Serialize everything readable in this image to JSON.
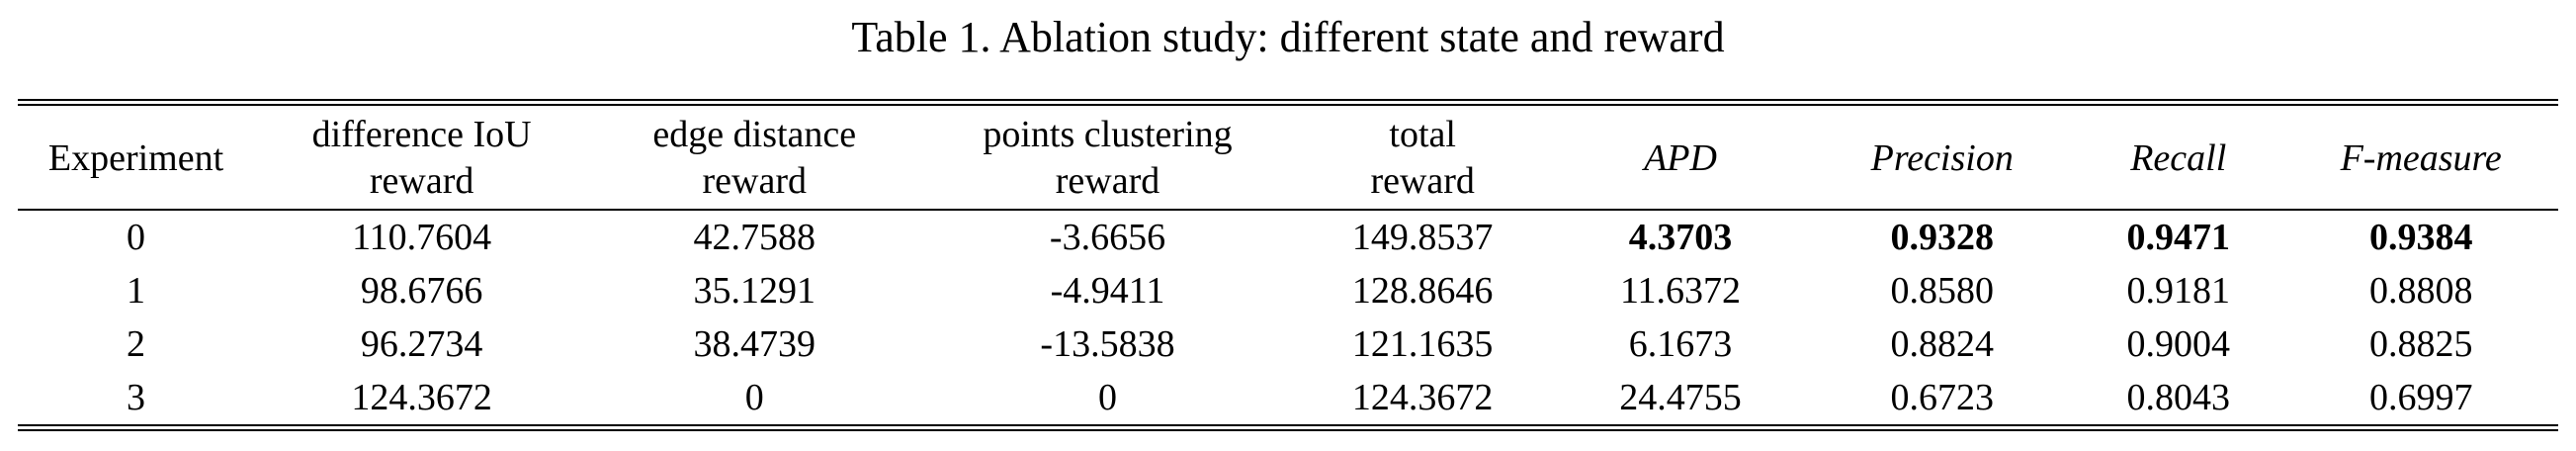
{
  "caption": "Table 1. Ablation study: different state and reward",
  "table": {
    "headers": [
      {
        "lines": [
          "Experiment"
        ],
        "italic": false
      },
      {
        "lines": [
          "difference IoU",
          "reward"
        ],
        "italic": false
      },
      {
        "lines": [
          "edge distance",
          "reward"
        ],
        "italic": false
      },
      {
        "lines": [
          "points clustering",
          "reward"
        ],
        "italic": false
      },
      {
        "lines": [
          "total",
          "reward"
        ],
        "italic": false
      },
      {
        "lines": [
          "APD"
        ],
        "italic": true
      },
      {
        "lines": [
          "Precision"
        ],
        "italic": true
      },
      {
        "lines": [
          "Recall"
        ],
        "italic": true
      },
      {
        "lines": [
          "F-measure"
        ],
        "italic": true
      }
    ],
    "rows": [
      {
        "cells": [
          "0",
          "110.7604",
          "42.7588",
          "-3.6656",
          "149.8537",
          "4.3703",
          "0.9328",
          "0.9471",
          "0.9384"
        ],
        "bold": [
          false,
          false,
          false,
          false,
          false,
          true,
          true,
          true,
          true
        ]
      },
      {
        "cells": [
          "1",
          "98.6766",
          "35.1291",
          "-4.9411",
          "128.8646",
          "11.6372",
          "0.8580",
          "0.9181",
          "0.8808"
        ],
        "bold": [
          false,
          false,
          false,
          false,
          false,
          false,
          false,
          false,
          false
        ]
      },
      {
        "cells": [
          "2",
          "96.2734",
          "38.4739",
          "-13.5838",
          "121.1635",
          "6.1673",
          "0.8824",
          "0.9004",
          "0.8825"
        ],
        "bold": [
          false,
          false,
          false,
          false,
          false,
          false,
          false,
          false,
          false
        ]
      },
      {
        "cells": [
          "3",
          "124.3672",
          "0",
          "0",
          "124.3672",
          "24.4755",
          "0.6723",
          "0.8043",
          "0.6997"
        ],
        "bold": [
          false,
          false,
          false,
          false,
          false,
          false,
          false,
          false,
          false
        ]
      }
    ]
  }
}
